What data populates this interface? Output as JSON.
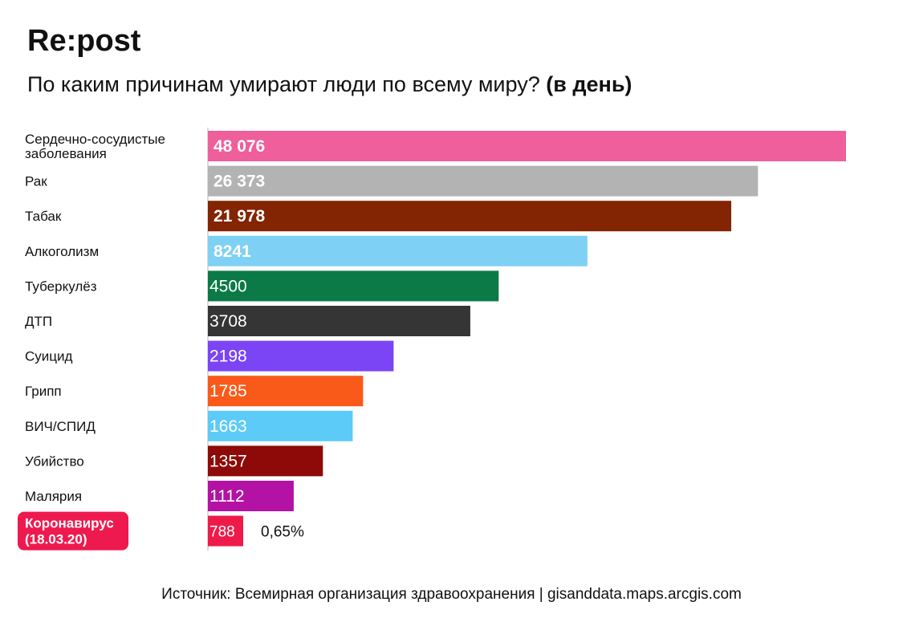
{
  "header": {
    "logo": "Re:post",
    "subtitle_main": "По каким причинам умирают люди по всему миру?",
    "subtitle_bold": "(в день)"
  },
  "chart_data": {
    "type": "bar",
    "orientation": "horizontal",
    "categories": [
      [
        "Сердечно-сосудистые",
        "заболевания"
      ],
      [
        "Рак"
      ],
      [
        "Табак"
      ],
      [
        "Алкоголизм"
      ],
      [
        "Туберкулёз"
      ],
      [
        "ДТП"
      ],
      [
        "Суицид"
      ],
      [
        "Грипп"
      ],
      [
        "ВИЧ/СПИД"
      ],
      [
        "Убийство"
      ],
      [
        "Малярия"
      ],
      [
        "Коронавирус",
        "(18.03.20)"
      ]
    ],
    "labels": [
      "48 076",
      "26 373",
      "21 978",
      "8241",
      "4500",
      "3708",
      "2198",
      "1785",
      "1663",
      "1357",
      "1112",
      "788"
    ],
    "values": [
      48076,
      26373,
      21978,
      8241,
      4500,
      3708,
      2198,
      1785,
      1663,
      1357,
      1112,
      788
    ],
    "colors": [
      "#ef5f9b",
      "#b3b3b3",
      "#832402",
      "#7ed1f5",
      "#0b7a47",
      "#353535",
      "#7b44f4",
      "#fa5a19",
      "#5dcbf7",
      "#8e0a08",
      "#b312a4",
      "#ee1b4a"
    ],
    "highlight_index": 11,
    "highlight_color": "#ee1a4f",
    "annotation": "0,65%"
  },
  "footer": {
    "source": "Источник: Всемирная организация здравоохранения | gisanddata.maps.arcgis.com"
  }
}
